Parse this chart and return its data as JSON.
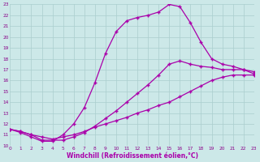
{
  "xlabel": "Windchill (Refroidissement éolien,°C)",
  "bg_color": "#cce8e8",
  "line_color": "#aa00aa",
  "grid_color": "#aacece",
  "xlim": [
    0,
    23
  ],
  "ylim": [
    10,
    23
  ],
  "yticks": [
    10,
    11,
    12,
    13,
    14,
    15,
    16,
    17,
    18,
    19,
    20,
    21,
    22,
    23
  ],
  "xticks": [
    0,
    1,
    2,
    3,
    4,
    5,
    6,
    7,
    8,
    9,
    10,
    11,
    12,
    13,
    14,
    15,
    16,
    17,
    18,
    19,
    20,
    21,
    22,
    23
  ],
  "line1_x": [
    0,
    1,
    2,
    3,
    4,
    5,
    6,
    7,
    8,
    9,
    10,
    11,
    12,
    13,
    14,
    15,
    16,
    17,
    18,
    19,
    20,
    21,
    22,
    23
  ],
  "line1_y": [
    11.5,
    11.3,
    11.0,
    10.8,
    10.6,
    10.8,
    11.0,
    11.3,
    11.7,
    12.0,
    12.3,
    12.6,
    13.0,
    13.3,
    13.7,
    14.0,
    14.5,
    15.0,
    15.5,
    16.0,
    16.3,
    16.5,
    16.5,
    16.5
  ],
  "line2_x": [
    0,
    1,
    2,
    3,
    4,
    5,
    6,
    7,
    8,
    9,
    10,
    11,
    12,
    13,
    14,
    15,
    16,
    17,
    18,
    19,
    20,
    21,
    22,
    23
  ],
  "line2_y": [
    11.5,
    11.3,
    11.0,
    10.5,
    10.5,
    10.5,
    10.8,
    11.2,
    11.8,
    12.5,
    13.2,
    14.0,
    14.8,
    15.6,
    16.5,
    17.5,
    17.8,
    17.5,
    17.3,
    17.2,
    17.0,
    17.0,
    17.0,
    16.8
  ],
  "line3_x": [
    0,
    1,
    2,
    3,
    4,
    5,
    6,
    7,
    8,
    9,
    10,
    11,
    12,
    13,
    14,
    15,
    16,
    17,
    18,
    19,
    20,
    21,
    22,
    23
  ],
  "line3_y": [
    11.5,
    11.2,
    10.8,
    10.4,
    10.4,
    11.0,
    12.0,
    13.5,
    15.8,
    18.5,
    20.5,
    21.5,
    21.8,
    22.0,
    22.3,
    23.0,
    22.8,
    21.3,
    19.5,
    18.0,
    17.5,
    17.3,
    17.0,
    16.6
  ]
}
